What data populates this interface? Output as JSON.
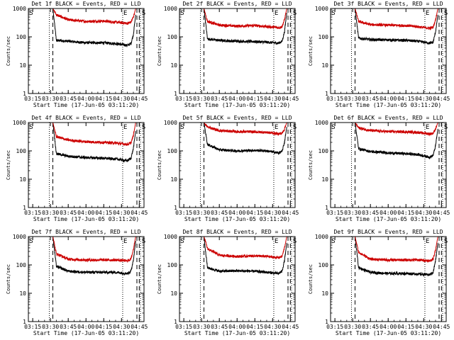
{
  "figure": {
    "colors": {
      "events": "#000000",
      "lld": "#cc0000",
      "axes": "#000000"
    }
  },
  "chart_data": [
    {
      "type": "line",
      "title": "Det 1f BLACK = Events, RED = LLD",
      "xlabel": "Start Time (17-Jun-05 03:11:20)",
      "ylabel": "Counts/sec",
      "yscale": "log",
      "ylim": [
        1,
        1000
      ],
      "xlim": [
        "03:11:20",
        "04:49:00"
      ],
      "x_ticks": [
        "03:15",
        "03:30",
        "03:45",
        "04:00",
        "04:15",
        "04:30",
        "04:45"
      ],
      "y_ticks": [
        "1",
        "10",
        "100",
        "1000"
      ],
      "markers": [
        {
          "label": "S",
          "time": "03:11:30"
        },
        {
          "label": "E",
          "time": "04:31:00"
        },
        {
          "label": "S",
          "time": "04:46:30"
        }
      ],
      "dotted_lines": [
        "03:29",
        "04:31",
        "04:46"
      ],
      "dashed_lines": [
        "03:32",
        "04:43",
        "04:45"
      ],
      "series": [
        {
          "name": "BLACK = Events",
          "color": "#000000",
          "profile": {
            "t": [
              "03:32",
              "03:35",
              "03:45",
              "04:00",
              "04:15",
              "04:25",
              "04:35",
              "04:38",
              "04:40",
              "04:42"
            ],
            "v": [
              1000,
              75,
              70,
              62,
              62,
              58,
              50,
              58,
              120,
              600
            ]
          }
        },
        {
          "name": "RED = LLD",
          "color": "#cc0000",
          "profile": {
            "t": [
              "03:32",
              "03:35",
              "03:45",
              "04:00",
              "04:15",
              "04:25",
              "04:35",
              "04:38",
              "04:40",
              "04:42"
            ],
            "v": [
              1000,
              600,
              400,
              350,
              360,
              330,
              300,
              330,
              500,
              1000
            ]
          }
        }
      ]
    },
    {
      "type": "line",
      "title": "Det 2f BLACK = Events, RED = LLD",
      "xlabel": "Start Time (17-Jun-05 03:11:20)",
      "ylabel": "Counts/sec",
      "yscale": "log",
      "ylim": [
        1,
        1000
      ],
      "xlim": [
        "03:11:20",
        "04:49:00"
      ],
      "x_ticks": [
        "03:15",
        "03:30",
        "03:45",
        "04:00",
        "04:15",
        "04:30",
        "04:45"
      ],
      "y_ticks": [
        "1",
        "10",
        "100",
        "1000"
      ],
      "markers": [
        {
          "label": "S",
          "time": "03:11:30"
        },
        {
          "label": "E",
          "time": "04:31:00"
        },
        {
          "label": "S",
          "time": "04:46:30"
        }
      ],
      "dotted_lines": [
        "03:29",
        "04:31",
        "04:46"
      ],
      "dashed_lines": [
        "03:32",
        "04:43",
        "04:45"
      ],
      "series": [
        {
          "name": "BLACK = Events",
          "color": "#000000",
          "profile": {
            "t": [
              "03:32",
              "03:35",
              "03:45",
              "04:00",
              "04:15",
              "04:25",
              "04:35",
              "04:38",
              "04:40",
              "04:42"
            ],
            "v": [
              1000,
              85,
              75,
              70,
              68,
              65,
              60,
              70,
              150,
              700
            ]
          }
        },
        {
          "name": "RED = LLD",
          "color": "#cc0000",
          "profile": {
            "t": [
              "03:32",
              "03:35",
              "03:45",
              "04:00",
              "04:15",
              "04:25",
              "04:35",
              "04:38",
              "04:40",
              "04:42"
            ],
            "v": [
              1000,
              350,
              260,
              240,
              250,
              230,
              210,
              230,
              400,
              1000
            ]
          }
        }
      ]
    },
    {
      "type": "line",
      "title": "Det 3f BLACK = Events, RED = LLD",
      "xlabel": "Start Time (17-Jun-05 03:11:20)",
      "ylabel": "Counts/sec",
      "yscale": "log",
      "ylim": [
        1,
        1000
      ],
      "xlim": [
        "03:11:20",
        "04:49:00"
      ],
      "x_ticks": [
        "03:15",
        "03:30",
        "03:45",
        "04:00",
        "04:15",
        "04:30",
        "04:45"
      ],
      "y_ticks": [
        "1",
        "10",
        "100",
        "1000"
      ],
      "markers": [
        {
          "label": "S",
          "time": "03:11:30"
        },
        {
          "label": "E",
          "time": "04:31:00"
        },
        {
          "label": "S",
          "time": "04:46:30"
        }
      ],
      "dotted_lines": [
        "03:29",
        "04:31",
        "04:46"
      ],
      "dashed_lines": [
        "03:32",
        "04:43",
        "04:45"
      ],
      "series": [
        {
          "name": "BLACK = Events",
          "color": "#000000",
          "profile": {
            "t": [
              "03:32",
              "03:35",
              "03:45",
              "04:00",
              "04:15",
              "04:25",
              "04:35",
              "04:38",
              "04:40",
              "04:42"
            ],
            "v": [
              1000,
              90,
              80,
              78,
              75,
              70,
              60,
              65,
              150,
              600
            ]
          }
        },
        {
          "name": "RED = LLD",
          "color": "#cc0000",
          "profile": {
            "t": [
              "03:32",
              "03:35",
              "03:45",
              "04:00",
              "04:15",
              "04:25",
              "04:35",
              "04:38",
              "04:40",
              "04:42"
            ],
            "v": [
              1000,
              350,
              270,
              260,
              250,
              230,
              200,
              220,
              400,
              1000
            ]
          }
        }
      ]
    },
    {
      "type": "line",
      "title": "Det 4f BLACK = Events, RED = LLD",
      "xlabel": "Start Time (17-Jun-05 03:11:20)",
      "ylabel": "Counts/sec",
      "yscale": "log",
      "ylim": [
        1,
        1000
      ],
      "xlim": [
        "03:11:20",
        "04:49:00"
      ],
      "x_ticks": [
        "03:15",
        "03:30",
        "03:45",
        "04:00",
        "04:15",
        "04:30",
        "04:45"
      ],
      "y_ticks": [
        "1",
        "10",
        "100",
        "1000"
      ],
      "markers": [
        {
          "label": "S",
          "time": "03:11:30"
        },
        {
          "label": "E",
          "time": "04:31:00"
        },
        {
          "label": "S",
          "time": "04:46:30"
        }
      ],
      "dotted_lines": [
        "03:29",
        "04:31",
        "04:46"
      ],
      "dashed_lines": [
        "03:32",
        "04:43",
        "04:45"
      ],
      "series": [
        {
          "name": "BLACK = Events",
          "color": "#000000",
          "profile": {
            "t": [
              "03:32",
              "03:35",
              "03:45",
              "04:00",
              "04:15",
              "04:25",
              "04:35",
              "04:38",
              "04:40",
              "04:42"
            ],
            "v": [
              1000,
              80,
              65,
              58,
              55,
              52,
              45,
              55,
              120,
              500
            ]
          }
        },
        {
          "name": "RED = LLD",
          "color": "#cc0000",
          "profile": {
            "t": [
              "03:32",
              "03:35",
              "03:45",
              "04:00",
              "04:15",
              "04:25",
              "04:35",
              "04:38",
              "04:40",
              "04:42"
            ],
            "v": [
              1000,
              320,
              240,
              210,
              200,
              190,
              170,
              190,
              350,
              1000
            ]
          }
        }
      ]
    },
    {
      "type": "line",
      "title": "Det 5f BLACK = Events, RED = LLD",
      "xlabel": "Start Time (17-Jun-05 03:11:20)",
      "ylabel": "Counts/sec",
      "yscale": "log",
      "ylim": [
        1,
        1000
      ],
      "xlim": [
        "03:11:20",
        "04:49:00"
      ],
      "x_ticks": [
        "03:15",
        "03:30",
        "03:45",
        "04:00",
        "04:15",
        "04:30",
        "04:45"
      ],
      "y_ticks": [
        "1",
        "10",
        "100",
        "1000"
      ],
      "markers": [
        {
          "label": "S",
          "time": "03:11:30"
        },
        {
          "label": "E",
          "time": "04:31:00"
        },
        {
          "label": "S",
          "time": "04:46:30"
        }
      ],
      "dotted_lines": [
        "03:29",
        "04:31",
        "04:46"
      ],
      "dashed_lines": [
        "03:32",
        "04:43",
        "04:45"
      ],
      "series": [
        {
          "name": "BLACK = Events",
          "color": "#000000",
          "profile": {
            "t": [
              "03:32",
              "03:35",
              "03:45",
              "04:00",
              "04:15",
              "04:25",
              "04:35",
              "04:38",
              "04:40",
              "04:42"
            ],
            "v": [
              1000,
              170,
              110,
              100,
              105,
              100,
              85,
              95,
              200,
              700
            ]
          }
        },
        {
          "name": "RED = LLD",
          "color": "#cc0000",
          "profile": {
            "t": [
              "03:32",
              "03:35",
              "03:45",
              "04:00",
              "04:15",
              "04:25",
              "04:35",
              "04:38",
              "04:40",
              "04:42"
            ],
            "v": [
              1000,
              700,
              520,
              480,
              470,
              450,
              400,
              420,
              600,
              1000
            ]
          }
        }
      ]
    },
    {
      "type": "line",
      "title": "Det 6f BLACK = Events, RED = LLD",
      "xlabel": "Start Time (17-Jun-05 03:11:20)",
      "ylabel": "Counts/sec",
      "yscale": "log",
      "ylim": [
        1,
        1000
      ],
      "xlim": [
        "03:11:20",
        "04:49:00"
      ],
      "x_ticks": [
        "03:15",
        "03:30",
        "03:45",
        "04:00",
        "04:15",
        "04:30",
        "04:45"
      ],
      "y_ticks": [
        "1",
        "10",
        "100",
        "1000"
      ],
      "markers": [
        {
          "label": "S",
          "time": "03:11:30"
        },
        {
          "label": "E",
          "time": "04:31:00"
        },
        {
          "label": "S",
          "time": "04:46:30"
        }
      ],
      "dotted_lines": [
        "03:29",
        "04:31",
        "04:46"
      ],
      "dashed_lines": [
        "03:32",
        "04:43",
        "04:45"
      ],
      "series": [
        {
          "name": "BLACK = Events",
          "color": "#000000",
          "profile": {
            "t": [
              "03:32",
              "03:35",
              "03:45",
              "04:00",
              "04:15",
              "04:25",
              "04:35",
              "04:38",
              "04:40",
              "04:42"
            ],
            "v": [
              1000,
              120,
              95,
              85,
              80,
              75,
              60,
              70,
              150,
              600
            ]
          }
        },
        {
          "name": "RED = LLD",
          "color": "#cc0000",
          "profile": {
            "t": [
              "03:32",
              "03:35",
              "03:45",
              "04:00",
              "04:15",
              "04:25",
              "04:35",
              "04:38",
              "04:40",
              "04:42"
            ],
            "v": [
              1000,
              650,
              520,
              480,
              470,
              450,
              400,
              420,
              600,
              1000
            ]
          }
        }
      ]
    },
    {
      "type": "line",
      "title": "Det 7f BLACK = Events, RED = LLD",
      "xlabel": "Start Time (17-Jun-05 03:11:20)",
      "ylabel": "Counts/sec",
      "yscale": "log",
      "ylim": [
        1,
        1000
      ],
      "xlim": [
        "03:11:20",
        "04:49:00"
      ],
      "x_ticks": [
        "03:15",
        "03:30",
        "03:45",
        "04:00",
        "04:15",
        "04:30",
        "04:45"
      ],
      "y_ticks": [
        "1",
        "10",
        "100",
        "1000"
      ],
      "markers": [
        {
          "label": "S",
          "time": "03:11:30"
        },
        {
          "label": "E",
          "time": "04:31:00"
        },
        {
          "label": "S",
          "time": "04:46:30"
        }
      ],
      "dotted_lines": [
        "03:29",
        "04:31",
        "04:46"
      ],
      "dashed_lines": [
        "03:32",
        "04:43",
        "04:45"
      ],
      "series": [
        {
          "name": "BLACK = Events",
          "color": "#000000",
          "profile": {
            "t": [
              "03:32",
              "03:35",
              "03:45",
              "04:00",
              "04:15",
              "04:25",
              "04:35",
              "04:38",
              "04:40",
              "04:42"
            ],
            "v": [
              1000,
              90,
              60,
              55,
              55,
              55,
              50,
              60,
              150,
              700
            ]
          }
        },
        {
          "name": "RED = LLD",
          "color": "#cc0000",
          "profile": {
            "t": [
              "03:32",
              "03:35",
              "03:45",
              "04:00",
              "04:15",
              "04:25",
              "04:35",
              "04:38",
              "04:40",
              "04:42"
            ],
            "v": [
              1000,
              250,
              160,
              150,
              150,
              150,
              140,
              160,
              350,
              1000
            ]
          }
        }
      ]
    },
    {
      "type": "line",
      "title": "Det 8f BLACK = Events, RED = LLD",
      "xlabel": "Start Time (17-Jun-05 03:11:20)",
      "ylabel": "Counts/sec",
      "yscale": "log",
      "ylim": [
        1,
        1000
      ],
      "xlim": [
        "03:11:20",
        "04:49:00"
      ],
      "x_ticks": [
        "03:15",
        "03:30",
        "03:45",
        "04:00",
        "04:15",
        "04:30",
        "04:45"
      ],
      "y_ticks": [
        "1",
        "10",
        "100",
        "1000"
      ],
      "markers": [
        {
          "label": "S",
          "time": "03:11:30"
        },
        {
          "label": "E",
          "time": "04:31:00"
        },
        {
          "label": "S",
          "time": "04:46:30"
        }
      ],
      "dotted_lines": [
        "03:29",
        "04:31",
        "04:46"
      ],
      "dashed_lines": [
        "03:32",
        "04:43",
        "04:45"
      ],
      "series": [
        {
          "name": "BLACK = Events",
          "color": "#000000",
          "profile": {
            "t": [
              "03:32",
              "03:35",
              "03:45",
              "04:00",
              "04:15",
              "04:25",
              "04:35",
              "04:38",
              "04:40",
              "04:42"
            ],
            "v": [
              1000,
              80,
              60,
              62,
              60,
              55,
              50,
              60,
              140,
              600
            ]
          }
        },
        {
          "name": "RED = LLD",
          "color": "#cc0000",
          "profile": {
            "t": [
              "03:32",
              "03:35",
              "03:45",
              "04:00",
              "04:15",
              "04:25",
              "04:35",
              "04:38",
              "04:40",
              "04:42"
            ],
            "v": [
              1000,
              380,
              220,
              200,
              210,
              200,
              180,
              200,
              400,
              1000
            ]
          }
        }
      ]
    },
    {
      "type": "line",
      "title": "Det 9f BLACK = Events, RED = LLD",
      "xlabel": "Start Time (17-Jun-05 03:11:20)",
      "ylabel": "Counts/sec",
      "yscale": "log",
      "ylim": [
        1,
        1000
      ],
      "xlim": [
        "03:11:20",
        "04:49:00"
      ],
      "x_ticks": [
        "03:15",
        "03:30",
        "03:45",
        "04:00",
        "04:15",
        "04:30",
        "04:45"
      ],
      "y_ticks": [
        "1",
        "10",
        "100",
        "1000"
      ],
      "markers": [
        {
          "label": "S",
          "time": "03:11:30"
        },
        {
          "label": "E",
          "time": "04:31:00"
        },
        {
          "label": "S",
          "time": "04:46:30"
        }
      ],
      "dotted_lines": [
        "03:29",
        "04:31",
        "04:46"
      ],
      "dashed_lines": [
        "03:32",
        "04:43",
        "04:45"
      ],
      "series": [
        {
          "name": "BLACK = Events",
          "color": "#000000",
          "profile": {
            "t": [
              "03:32",
              "03:35",
              "03:45",
              "04:00",
              "04:15",
              "04:25",
              "04:35",
              "04:38",
              "04:40",
              "04:42"
            ],
            "v": [
              1000,
              80,
              55,
              50,
              50,
              48,
              45,
              55,
              140,
              600
            ]
          }
        },
        {
          "name": "RED = LLD",
          "color": "#cc0000",
          "profile": {
            "t": [
              "03:32",
              "03:35",
              "03:45",
              "04:00",
              "04:15",
              "04:25",
              "04:35",
              "04:38",
              "04:40",
              "04:42"
            ],
            "v": [
              1000,
              280,
              160,
              150,
              150,
              150,
              140,
              160,
              350,
              1000
            ]
          }
        }
      ]
    }
  ]
}
